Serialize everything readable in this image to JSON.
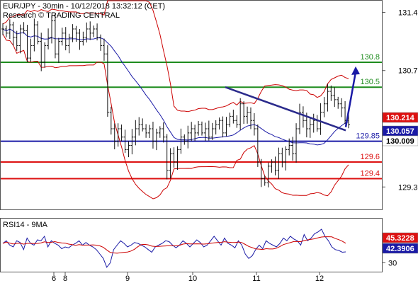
{
  "header": {
    "line1": "EUR/JPY - 30min - 10/12/2018 13:32:12 (CET)",
    "line2": "Research © TRADING CENTRAL"
  },
  "colors": {
    "bollinger": "#cc0000",
    "moving_average": "#1a1aa6",
    "resistance": "#1e8c1e",
    "support": "#dd1111",
    "pivot": "#1a1aa6",
    "trendline": "#2b2b8c",
    "arrow": "#1a1aa6",
    "rsi": "#1a1aa6",
    "rsi_ma": "#cc0000",
    "price": "#111111"
  },
  "chart_data": [
    {
      "type": "line",
      "title": "EUR/JPY - 30min",
      "x_tick_labels": [
        "6",
        "8",
        "9",
        "10",
        "11",
        "12"
      ],
      "y_tick_labels": [
        "131.4",
        "130.7",
        "129.3"
      ],
      "ylim": [
        129.03,
        131.54
      ],
      "levels": [
        {
          "name": "resistance-2",
          "value": 130.8,
          "label": "130.8",
          "color": "#1e8c1e"
        },
        {
          "name": "resistance-1",
          "value": 130.5,
          "label": "130.5",
          "color": "#1e8c1e"
        },
        {
          "name": "pivot",
          "value": 129.85,
          "label": "129.85",
          "color": "#1a1aa6"
        },
        {
          "name": "support-1",
          "value": 129.6,
          "label": "129.6",
          "color": "#dd1111"
        },
        {
          "name": "support-2",
          "value": 129.4,
          "label": "129.4",
          "color": "#dd1111"
        }
      ],
      "price_badges": [
        {
          "name": "upper-band",
          "value": "130.214",
          "bg": "#dd1111",
          "fg": "#ffffff"
        },
        {
          "name": "last-price",
          "value": "130.057",
          "bg": "#1a1aa6",
          "fg": "#ffffff"
        },
        {
          "name": "ma-value",
          "value": "130.009",
          "bg": "#ffffff",
          "fg": "#000000"
        }
      ],
      "close": [
        131.2,
        131.15,
        131.25,
        131.1,
        131.0,
        131.2,
        131.18,
        130.85,
        131.0,
        131.25,
        131.05,
        130.8,
        131.0,
        131.1,
        131.3,
        130.9,
        131.05,
        131.15,
        131.0,
        131.1,
        131.2,
        131.15,
        131.05,
        131.1,
        131.2,
        131.15,
        131.2,
        131.1,
        131.0,
        130.9,
        130.2,
        130.0,
        129.85,
        130.0,
        129.9,
        129.75,
        129.8,
        129.9,
        130.0,
        130.05,
        130.0,
        129.95,
        130.0,
        129.85,
        129.95,
        130.0,
        129.9,
        129.5,
        129.7,
        129.6,
        129.75,
        129.9,
        129.85,
        129.95,
        130.0,
        129.95,
        130.05,
        129.95,
        130.0,
        129.9,
        130.0,
        130.05,
        130.1,
        129.95,
        130.05,
        130.15,
        130.1,
        130.05,
        130.3,
        130.15,
        130.2,
        130.1,
        130.0,
        129.6,
        129.4,
        129.35,
        129.55,
        129.6,
        129.5,
        129.7,
        129.6,
        129.75,
        129.8,
        129.7,
        130.0,
        130.2,
        130.1,
        130.0,
        130.05,
        130.1,
        130.0,
        130.2,
        130.3,
        130.45,
        130.4,
        130.35,
        130.3,
        130.25,
        130.1,
        130.05
      ],
      "series": [
        {
          "name": "RSI14",
          "color": "#1a1aa6"
        },
        {
          "name": "9MA",
          "color": "#cc0000"
        }
      ]
    },
    {
      "type": "line",
      "title": "RSI14 - 9MA",
      "y_tick_labels": [
        "30"
      ],
      "ylim": [
        20,
        80
      ],
      "badges": [
        {
          "name": "rsi-ma-value",
          "value": "45.3228",
          "bg": "#dd1111",
          "fg": "#ffffff"
        },
        {
          "name": "rsi-value",
          "value": "42.3906",
          "bg": "#1a1aa6",
          "fg": "#ffffff"
        }
      ],
      "rsi": [
        52,
        55,
        50,
        48,
        55,
        53,
        45,
        58,
        52,
        50,
        56,
        55,
        60,
        48,
        55,
        52,
        50,
        46,
        48,
        47,
        50,
        52,
        55,
        50,
        53,
        50,
        48,
        45,
        40,
        35,
        25,
        30,
        45,
        50,
        55,
        52,
        48,
        50,
        53,
        52,
        50,
        48,
        45,
        42,
        48,
        50,
        52,
        55,
        54,
        50,
        47,
        50,
        55,
        52,
        48,
        52,
        56,
        53,
        48,
        50,
        55,
        60,
        55,
        50,
        58,
        52,
        50,
        47,
        55,
        50,
        40,
        35,
        38,
        45,
        50,
        46,
        55,
        52,
        50,
        48,
        52,
        58,
        55,
        60,
        57,
        55,
        50,
        62,
        55,
        58,
        63,
        65,
        68,
        60,
        55,
        48,
        45,
        44,
        42,
        42.39
      ]
    }
  ]
}
